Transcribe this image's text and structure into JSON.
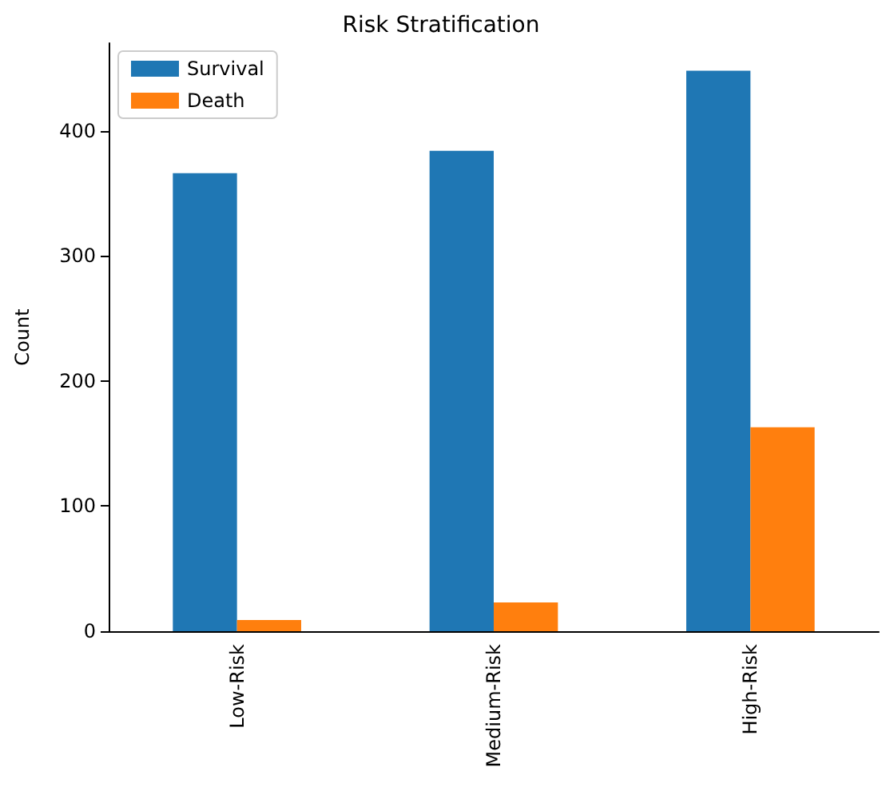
{
  "chart_data": {
    "type": "bar",
    "title": "Risk Stratification",
    "ylabel": "Count",
    "categories": [
      "Low-Risk",
      "Medium-Risk",
      "High-Risk"
    ],
    "series": [
      {
        "name": "Survival",
        "color": "#1f77b4",
        "values": [
          366,
          384,
          448
        ]
      },
      {
        "name": "Death",
        "color": "#ff7f0e",
        "values": [
          9,
          23,
          163
        ]
      }
    ],
    "ylim": [
      0,
      470
    ],
    "yticks": [
      0,
      100,
      200,
      300,
      400
    ],
    "grid": false,
    "legend": "top left"
  }
}
